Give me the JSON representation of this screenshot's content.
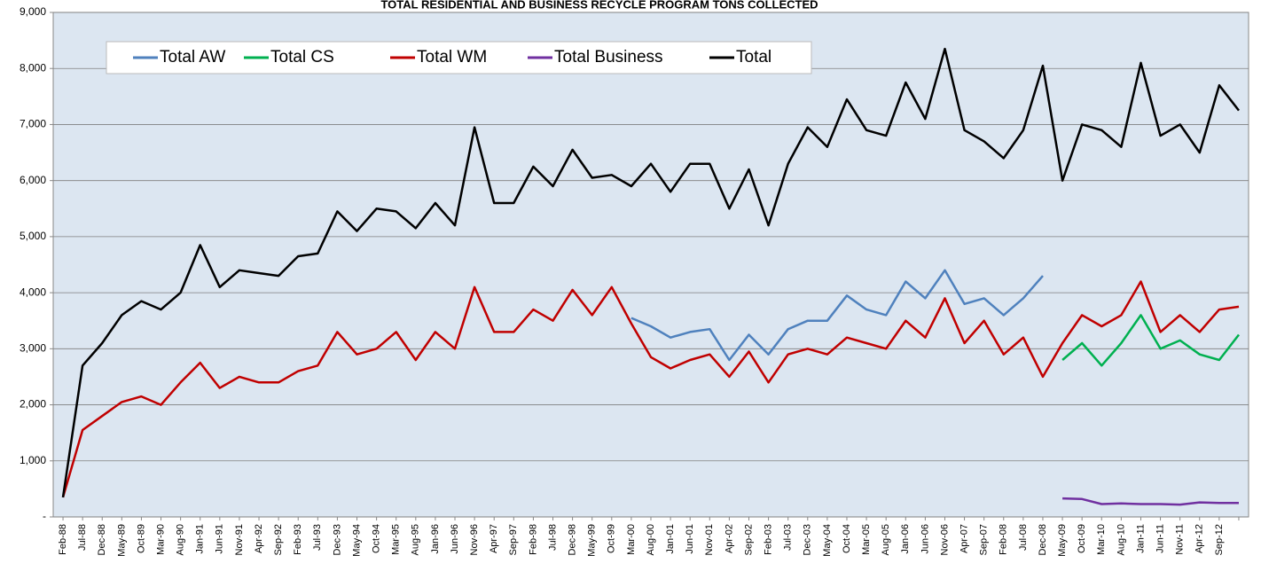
{
  "chart_data": {
    "type": "line",
    "title": "TOTAL RESIDENTIAL AND BUSINESS RECYCLE PROGRAM TONS COLLECTED",
    "categories": [
      "Feb-88",
      "Jul-88",
      "Dec-88",
      "May-89",
      "Oct-89",
      "Mar-90",
      "Aug-90",
      "Jan-91",
      "Jun-91",
      "Nov-91",
      "Apr-92",
      "Sep-92",
      "Feb-93",
      "Jul-93",
      "Dec-93",
      "May-94",
      "Oct-94",
      "Mar-95",
      "Aug-95",
      "Jan-96",
      "Jun-96",
      "Nov-96",
      "Apr-97",
      "Sep-97",
      "Feb-98",
      "Jul-98",
      "Dec-98",
      "May-99",
      "Oct-99",
      "Mar-00",
      "Aug-00",
      "Jan-01",
      "Jun-01",
      "Nov-01",
      "Apr-02",
      "Sep-02",
      "Feb-03",
      "Jul-03",
      "Dec-03",
      "May-04",
      "Oct-04",
      "Mar-05",
      "Aug-05",
      "Jan-06",
      "Jun-06",
      "Nov-06",
      "Apr-07",
      "Sep-07",
      "Feb-08",
      "Jul-08",
      "Dec-08",
      "May-09",
      "Oct-09",
      "Mar-10",
      "Aug-10",
      "Jan-11",
      "Jun-11",
      "Nov-11",
      "Apr-12",
      "Sep-12",
      null
    ],
    "series": [
      {
        "name": "Total AW",
        "color": "#4f81bd",
        "values": [
          null,
          null,
          null,
          null,
          null,
          null,
          null,
          null,
          null,
          null,
          null,
          null,
          null,
          null,
          null,
          null,
          null,
          null,
          null,
          null,
          null,
          null,
          null,
          null,
          null,
          null,
          null,
          null,
          null,
          3550,
          3400,
          3200,
          3300,
          3350,
          2800,
          3250,
          2900,
          3350,
          3500,
          3500,
          3950,
          3700,
          3600,
          4200,
          3900,
          4400,
          3800,
          3900,
          3600,
          3900,
          4300,
          null,
          null,
          null,
          null,
          null,
          null,
          null,
          null,
          null,
          null
        ]
      },
      {
        "name": "Total CS",
        "color": "#00b050",
        "values": [
          null,
          null,
          null,
          null,
          null,
          null,
          null,
          null,
          null,
          null,
          null,
          null,
          null,
          null,
          null,
          null,
          null,
          null,
          null,
          null,
          null,
          null,
          null,
          null,
          null,
          null,
          null,
          null,
          null,
          null,
          null,
          null,
          null,
          null,
          null,
          null,
          null,
          null,
          null,
          null,
          null,
          null,
          null,
          null,
          null,
          null,
          null,
          null,
          null,
          null,
          null,
          2800,
          3100,
          2700,
          3100,
          3600,
          3000,
          3150,
          2900,
          2800,
          3250
        ]
      },
      {
        "name": "Total WM",
        "color": "#c00000",
        "values": [
          350,
          1550,
          1800,
          2050,
          2150,
          2000,
          2400,
          2750,
          2300,
          2500,
          2400,
          2400,
          2600,
          2700,
          3300,
          2900,
          3000,
          3300,
          2800,
          3300,
          3000,
          4100,
          3300,
          3300,
          3700,
          3500,
          4050,
          3600,
          4100,
          3450,
          2850,
          2650,
          2800,
          2900,
          2500,
          2950,
          2400,
          2900,
          3000,
          2900,
          3200,
          3100,
          3000,
          3500,
          3200,
          3900,
          3100,
          3500,
          2900,
          3200,
          2500,
          3100,
          3600,
          3400,
          3600,
          4200,
          3300,
          3600,
          3300,
          3700,
          3750
        ]
      },
      {
        "name": "Total Business",
        "color": "#7030a0",
        "values": [
          null,
          null,
          null,
          null,
          null,
          null,
          null,
          null,
          null,
          null,
          null,
          null,
          null,
          null,
          null,
          null,
          null,
          null,
          null,
          null,
          null,
          null,
          null,
          null,
          null,
          null,
          null,
          null,
          null,
          null,
          null,
          null,
          null,
          null,
          null,
          null,
          null,
          null,
          null,
          null,
          null,
          null,
          null,
          null,
          null,
          null,
          null,
          null,
          null,
          null,
          null,
          330,
          320,
          230,
          240,
          230,
          230,
          220,
          260,
          250,
          250
        ]
      },
      {
        "name": "Total",
        "color": "#000000",
        "values": [
          350,
          2700,
          3100,
          3600,
          3850,
          3700,
          4000,
          4850,
          4100,
          4400,
          4350,
          4300,
          4650,
          4700,
          5450,
          5100,
          5500,
          5450,
          5150,
          5600,
          5200,
          6950,
          5600,
          5600,
          6250,
          5900,
          6550,
          6050,
          6100,
          5900,
          6300,
          5800,
          6300,
          6300,
          5500,
          6200,
          5200,
          6300,
          6950,
          6600,
          7450,
          6900,
          6800,
          7750,
          7100,
          8350,
          6900,
          6700,
          6400,
          6900,
          8050,
          6000,
          7000,
          6900,
          6600,
          8100,
          6800,
          7000,
          6500,
          7700,
          7250
        ]
      }
    ],
    "ylim": [
      0,
      9000
    ],
    "yticks": [
      {
        "value": 0,
        "label": "-"
      },
      {
        "value": 1000,
        "label": "1,000"
      },
      {
        "value": 2000,
        "label": "2,000"
      },
      {
        "value": 3000,
        "label": "3,000"
      },
      {
        "value": 4000,
        "label": "4,000"
      },
      {
        "value": 5000,
        "label": "5,000"
      },
      {
        "value": 6000,
        "label": "6,000"
      },
      {
        "value": 7000,
        "label": "7,000"
      },
      {
        "value": 8000,
        "label": "8,000"
      },
      {
        "value": 9000,
        "label": "9,000"
      }
    ],
    "grid": true
  }
}
